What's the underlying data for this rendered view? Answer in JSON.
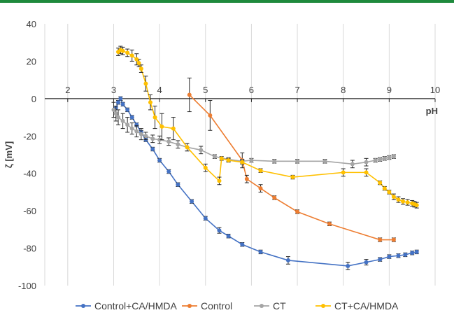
{
  "chart_data": {
    "type": "line",
    "title": "",
    "xlabel": "pH",
    "ylabel": "ζ [mV]",
    "xlim": [
      1.5,
      10
    ],
    "ylim": [
      -100,
      40
    ],
    "xticks": [
      2,
      3,
      4,
      5,
      6,
      7,
      8,
      9,
      10
    ],
    "yticks": [
      40,
      20,
      0,
      -20,
      -40,
      -60,
      -80,
      -100
    ],
    "grid": {
      "vertical": true,
      "horizontal": false
    },
    "legend_position": "bottom",
    "series": [
      {
        "name": "Control+CA/HMDA",
        "color": "#4472c4",
        "points": [
          [
            3.05,
            -5,
            0
          ],
          [
            3.1,
            -2,
            1
          ],
          [
            3.15,
            0,
            1
          ],
          [
            3.2,
            -3,
            1
          ],
          [
            3.3,
            -6,
            1
          ],
          [
            3.4,
            -10,
            1
          ],
          [
            3.5,
            -14,
            1
          ],
          [
            3.6,
            -18,
            1
          ],
          [
            3.7,
            -22,
            1
          ],
          [
            3.85,
            -27,
            1
          ],
          [
            4.0,
            -33,
            1
          ],
          [
            4.2,
            -39,
            1
          ],
          [
            4.4,
            -46,
            1
          ],
          [
            4.7,
            -55,
            1
          ],
          [
            5.0,
            -64,
            1
          ],
          [
            5.3,
            -70.5,
            1.5
          ],
          [
            5.5,
            -73.5,
            1
          ],
          [
            5.8,
            -78,
            1
          ],
          [
            6.2,
            -82,
            1
          ],
          [
            6.8,
            -86.5,
            2
          ],
          [
            8.1,
            -89.5,
            2
          ],
          [
            8.5,
            -87.5,
            1.5
          ],
          [
            8.8,
            -86,
            1
          ],
          [
            9.0,
            -84.5,
            1
          ],
          [
            9.2,
            -84,
            1
          ],
          [
            9.35,
            -83.5,
            1
          ],
          [
            9.5,
            -82.5,
            1
          ],
          [
            9.6,
            -82,
            1
          ]
        ]
      },
      {
        "name": "Control",
        "color": "#ed7d31",
        "points": [
          [
            4.65,
            2,
            9
          ],
          [
            5.1,
            -9,
            8
          ],
          [
            5.8,
            -33,
            4
          ],
          [
            5.9,
            -43,
            2
          ],
          [
            6.2,
            -48,
            2
          ],
          [
            6.5,
            -53,
            1
          ],
          [
            7.0,
            -60.5,
            1
          ],
          [
            7.7,
            -67,
            1
          ],
          [
            8.8,
            -75.5,
            1
          ],
          [
            9.1,
            -75.5,
            1
          ]
        ]
      },
      {
        "name": "CT",
        "color": "#a5a5a5",
        "points": [
          [
            3.0,
            -6,
            4
          ],
          [
            3.05,
            -8,
            4
          ],
          [
            3.1,
            -10,
            4
          ],
          [
            3.2,
            -12,
            4
          ],
          [
            3.3,
            -14,
            4
          ],
          [
            3.4,
            -16,
            3
          ],
          [
            3.5,
            -17.5,
            3
          ],
          [
            3.6,
            -19,
            3
          ],
          [
            3.7,
            -20,
            2
          ],
          [
            3.85,
            -21.5,
            2
          ],
          [
            4.0,
            -22,
            2
          ],
          [
            4.2,
            -23,
            2
          ],
          [
            4.4,
            -24.5,
            2
          ],
          [
            4.6,
            -26,
            2
          ],
          [
            4.9,
            -27.5,
            2
          ],
          [
            5.2,
            -31,
            1
          ],
          [
            5.5,
            -32.5,
            1
          ],
          [
            5.8,
            -33.5,
            1
          ],
          [
            6.0,
            -33,
            1
          ],
          [
            6.5,
            -33.5,
            1
          ],
          [
            7.0,
            -33.5,
            1
          ],
          [
            7.6,
            -33.5,
            1
          ],
          [
            8.2,
            -35,
            2
          ],
          [
            8.5,
            -34,
            2
          ],
          [
            8.7,
            -33,
            1
          ],
          [
            8.8,
            -32.5,
            1
          ],
          [
            8.9,
            -32,
            1
          ],
          [
            9.0,
            -31.5,
            1
          ],
          [
            9.1,
            -31,
            1
          ]
        ]
      },
      {
        "name": "CT+CA/HMDA",
        "color": "#ffc000",
        "points": [
          [
            3.1,
            25,
            2
          ],
          [
            3.15,
            26,
            2
          ],
          [
            3.2,
            25.5,
            2
          ],
          [
            3.3,
            24.5,
            2
          ],
          [
            3.4,
            23,
            3
          ],
          [
            3.5,
            21,
            3
          ],
          [
            3.55,
            19,
            2
          ],
          [
            3.6,
            16,
            2
          ],
          [
            3.7,
            8,
            4
          ],
          [
            3.8,
            -2,
            4
          ],
          [
            3.9,
            -10,
            6
          ],
          [
            4.05,
            -15,
            7
          ],
          [
            4.3,
            -16,
            6
          ],
          [
            4.6,
            -26,
            2
          ],
          [
            5.0,
            -37,
            2
          ],
          [
            5.3,
            -44,
            2
          ],
          [
            5.35,
            -32,
            1
          ],
          [
            5.5,
            -33,
            1
          ],
          [
            5.8,
            -34,
            1
          ],
          [
            6.2,
            -38.5,
            1
          ],
          [
            6.9,
            -42,
            1
          ],
          [
            8.0,
            -39.5,
            2
          ],
          [
            8.5,
            -39.5,
            2
          ],
          [
            8.8,
            -45,
            1
          ],
          [
            8.9,
            -48,
            1
          ],
          [
            9.0,
            -50,
            1
          ],
          [
            9.1,
            -52.5,
            1.5
          ],
          [
            9.2,
            -54,
            1.5
          ],
          [
            9.3,
            -55,
            1.5
          ],
          [
            9.4,
            -55.5,
            1.5
          ],
          [
            9.5,
            -56,
            1.5
          ],
          [
            9.55,
            -56.5,
            1.5
          ],
          [
            9.6,
            -57,
            1.5
          ]
        ]
      }
    ]
  }
}
